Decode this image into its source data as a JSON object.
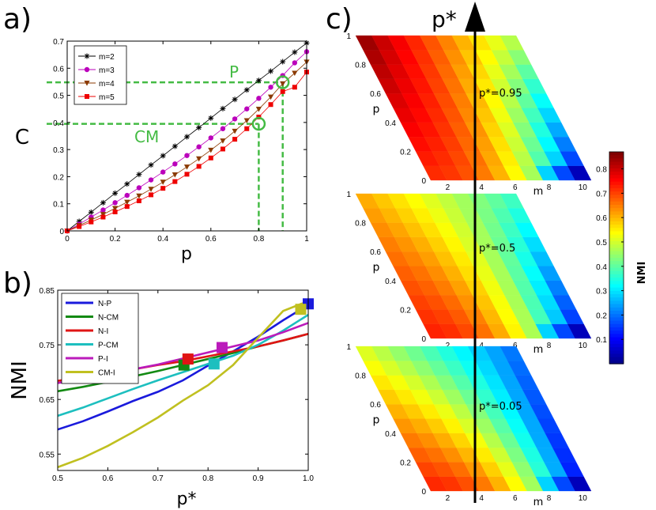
{
  "panels": {
    "a": {
      "label": "a)"
    },
    "b": {
      "label": "b)"
    },
    "c": {
      "label": "c)"
    }
  },
  "chart_data": [
    {
      "id": "a",
      "type": "line",
      "xlabel": "p",
      "ylabel": "C",
      "xlim": [
        0,
        1
      ],
      "ylim": [
        0,
        0.7
      ],
      "xticks": [
        "0",
        "0.2",
        "0.4",
        "0.6",
        "0.8",
        "1"
      ],
      "yticks": [
        "0",
        "0.1",
        "0.2",
        "0.3",
        "0.4",
        "0.5",
        "0.6",
        "0.7"
      ],
      "legend": "top-left",
      "x": [
        0,
        0.05,
        0.1,
        0.15,
        0.2,
        0.25,
        0.3,
        0.35,
        0.4,
        0.45,
        0.5,
        0.55,
        0.6,
        0.65,
        0.7,
        0.75,
        0.8,
        0.85,
        0.9,
        0.95,
        1.0
      ],
      "series": [
        {
          "name": "m=2",
          "color": "#000000",
          "marker": "star",
          "values": [
            0,
            0.035,
            0.069,
            0.104,
            0.139,
            0.173,
            0.208,
            0.243,
            0.277,
            0.312,
            0.347,
            0.381,
            0.416,
            0.451,
            0.485,
            0.52,
            0.555,
            0.589,
            0.624,
            0.659,
            0.693
          ]
        },
        {
          "name": "m=3",
          "color": "#bb00bb",
          "marker": "circle",
          "values": [
            0,
            0.025,
            0.051,
            0.077,
            0.104,
            0.131,
            0.159,
            0.188,
            0.217,
            0.247,
            0.278,
            0.31,
            0.343,
            0.377,
            0.413,
            0.45,
            0.489,
            0.53,
            0.573,
            0.62,
            0.661
          ]
        },
        {
          "name": "m=4",
          "color": "#8b3a00",
          "marker": "triangle-down",
          "values": [
            0,
            0.02,
            0.04,
            0.061,
            0.083,
            0.106,
            0.129,
            0.154,
            0.18,
            0.207,
            0.236,
            0.266,
            0.298,
            0.332,
            0.368,
            0.407,
            0.449,
            0.494,
            0.543,
            0.582,
            0.623
          ]
        },
        {
          "name": "m=5",
          "color": "#ee0000",
          "marker": "square",
          "values": [
            0,
            0.016,
            0.033,
            0.051,
            0.07,
            0.09,
            0.111,
            0.133,
            0.157,
            0.182,
            0.209,
            0.238,
            0.269,
            0.302,
            0.338,
            0.377,
            0.42,
            0.466,
            0.514,
            0.53,
            0.586
          ]
        }
      ],
      "annotations": [
        {
          "text": "P",
          "x": 0.9,
          "y": 0.548,
          "color": "#44bb44"
        },
        {
          "text": "CM",
          "x": 0.8,
          "y": 0.395,
          "color": "#44bb44"
        }
      ]
    },
    {
      "id": "b",
      "type": "line",
      "xlabel": "p*",
      "ylabel": "NMI",
      "xlim": [
        0.5,
        1.0
      ],
      "ylim": [
        0.52,
        0.85
      ],
      "xticks": [
        "0.5",
        "0.6",
        "0.7",
        "0.8",
        "0.9",
        "1.0"
      ],
      "yticks": [
        "0.55",
        "0.65",
        "0.75",
        "0.85"
      ],
      "legend": "top-left",
      "x": [
        0.5,
        0.55,
        0.6,
        0.65,
        0.7,
        0.75,
        0.8,
        0.85,
        0.9,
        0.95,
        1.0
      ],
      "series": [
        {
          "name": "N-P",
          "color": "#1a1adc",
          "values": [
            0.595,
            0.61,
            0.628,
            0.647,
            0.664,
            0.685,
            0.712,
            0.738,
            0.765,
            0.795,
            0.823
          ],
          "square_at": [
            1.0,
            0.825
          ]
        },
        {
          "name": "N-CM",
          "color": "#138a13",
          "values": [
            0.665,
            0.673,
            0.682,
            0.692,
            0.702,
            0.713,
            0.724,
            0.735,
            0.747,
            0.758,
            0.77
          ],
          "square_at": [
            0.752,
            0.713
          ]
        },
        {
          "name": "N-I",
          "color": "#e01414",
          "values": [
            0.684,
            0.691,
            0.698,
            0.705,
            0.713,
            0.72,
            0.729,
            0.738,
            0.747,
            0.758,
            0.77
          ],
          "square_at": [
            0.76,
            0.724
          ]
        },
        {
          "name": "P-CM",
          "color": "#1dbfbf",
          "values": [
            0.62,
            0.635,
            0.652,
            0.669,
            0.685,
            0.7,
            0.715,
            0.73,
            0.75,
            0.776,
            0.805
          ],
          "square_at": [
            0.812,
            0.715
          ]
        },
        {
          "name": "P-I",
          "color": "#bb1bbb",
          "values": [
            0.68,
            0.688,
            0.696,
            0.705,
            0.714,
            0.725,
            0.736,
            0.747,
            0.758,
            0.773,
            0.79
          ],
          "square_at": [
            0.828,
            0.745
          ]
        },
        {
          "name": "CM-I",
          "color": "#c0c020",
          "values": [
            0.526,
            0.543,
            0.565,
            0.59,
            0.617,
            0.648,
            0.676,
            0.713,
            0.763,
            0.812,
            0.83
          ],
          "square_at": [
            0.985,
            0.815
          ]
        }
      ]
    },
    {
      "id": "c",
      "type": "heatmap",
      "axis_label": "p*",
      "colorbar": {
        "label": "NMI",
        "min": 0,
        "max": 0.87,
        "ticks": [
          "0.1",
          "0.2",
          "0.3",
          "0.4",
          "0.5",
          "0.6",
          "0.7",
          "0.8"
        ]
      },
      "x_label": "m",
      "y_label": "p",
      "x_ticks": [
        "2",
        "4",
        "6",
        "8",
        "10"
      ],
      "y_ticks": [
        "0",
        "0.2",
        "0.4",
        "0.6",
        "0.8",
        "1"
      ],
      "layers": [
        {
          "label": "p*=0.95",
          "top_left": 0.87,
          "top_right": 0.48,
          "bottom_left": 0.72,
          "bottom_right": 0.05
        },
        {
          "label": "p*=0.5",
          "top_left": 0.62,
          "top_right": 0.38,
          "bottom_left": 0.74,
          "bottom_right": 0.05
        },
        {
          "label": "p*=0.05",
          "top_left": 0.52,
          "top_right": 0.2,
          "bottom_left": 0.74,
          "bottom_right": 0.05
        }
      ]
    }
  ]
}
